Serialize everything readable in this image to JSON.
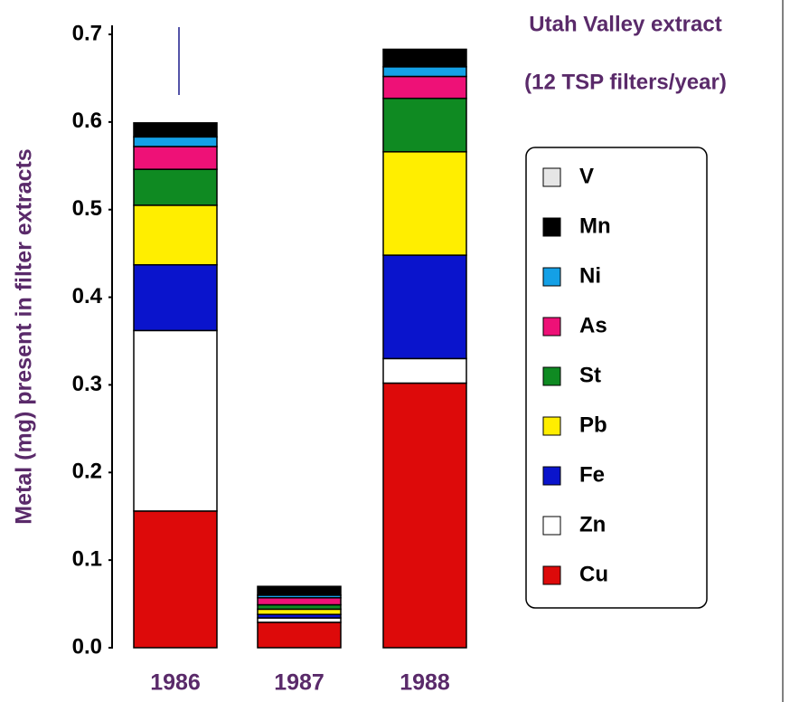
{
  "chart_data": {
    "type": "stacked_bar",
    "title": [
      "Utah Valley extract",
      "(12 TSP filters/year)"
    ],
    "ylabel": "Metal (mg) present in filter extracts",
    "categories": [
      "1986",
      "1987",
      "1988"
    ],
    "series": [
      {
        "name": "Cu",
        "color": "#dd0a0a",
        "values": [
          0.156,
          0.029,
          0.302
        ]
      },
      {
        "name": "Zn",
        "color": "#ffffff",
        "values": [
          0.206,
          0.005,
          0.028
        ]
      },
      {
        "name": "Fe",
        "color": "#0a14cc",
        "values": [
          0.075,
          0.004,
          0.118
        ]
      },
      {
        "name": "Pb",
        "color": "#ffee00",
        "values": [
          0.068,
          0.006,
          0.118
        ]
      },
      {
        "name": "St",
        "color": "#0f8a22",
        "values": [
          0.041,
          0.005,
          0.061
        ]
      },
      {
        "name": "As",
        "color": "#ee1177",
        "values": [
          0.026,
          0.008,
          0.025
        ]
      },
      {
        "name": "Ni",
        "color": "#14a0e6",
        "values": [
          0.011,
          0.003,
          0.011
        ]
      },
      {
        "name": "Mn",
        "color": "#000000",
        "values": [
          0.016,
          0.01,
          0.02
        ]
      },
      {
        "name": "V",
        "color": "#e6e6e6",
        "values": [
          0,
          0,
          0
        ]
      }
    ],
    "ylim": [
      0,
      0.7
    ],
    "yticks": [
      {
        "value": 0,
        "label": "0.0"
      },
      0.1,
      0.2,
      0.3,
      0.4,
      0.5,
      0.6,
      0.7
    ],
    "legend": "right"
  }
}
